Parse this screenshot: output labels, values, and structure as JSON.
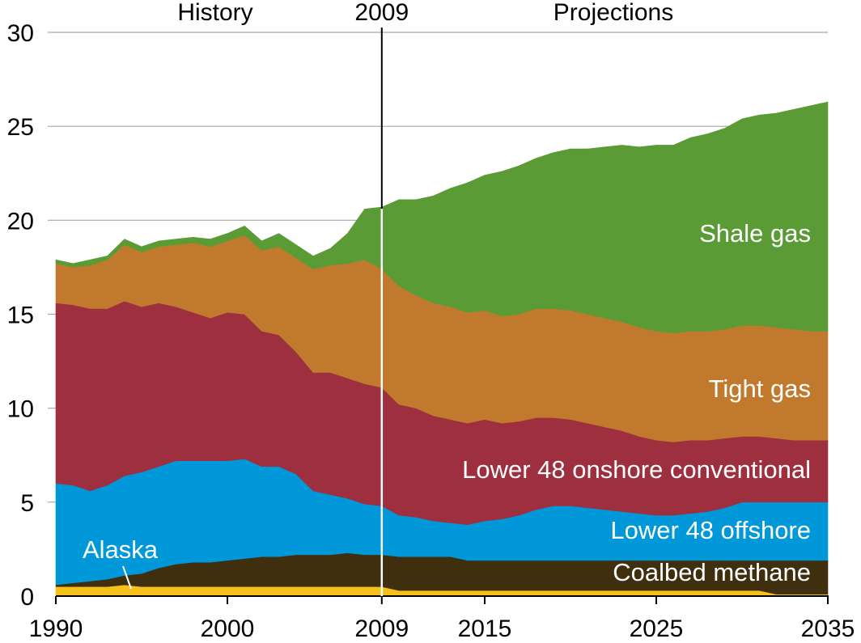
{
  "chart_data": {
    "type": "area",
    "title": "",
    "xlabel": "",
    "ylabel": "",
    "xlim": [
      1990,
      2035
    ],
    "ylim": [
      0,
      30
    ],
    "grid": true,
    "x_ticks": [
      {
        "value": 1990,
        "label": "1990"
      },
      {
        "value": 2000,
        "label": "2000"
      },
      {
        "value": 2009,
        "label": "2009"
      },
      {
        "value": 2015,
        "label": "2015"
      },
      {
        "value": 2025,
        "label": "2025"
      },
      {
        "value": 2035,
        "label": "2035"
      }
    ],
    "y_ticks": [
      {
        "value": 0,
        "label": "0"
      },
      {
        "value": 5,
        "label": "5"
      },
      {
        "value": 10,
        "label": "10"
      },
      {
        "value": 15,
        "label": "15"
      },
      {
        "value": 20,
        "label": "20"
      },
      {
        "value": 25,
        "label": "25"
      },
      {
        "value": 30,
        "label": "30"
      }
    ],
    "divider_year": 2009,
    "annotations": {
      "history": "History",
      "divider": "2009",
      "projections": "Projections"
    },
    "x": [
      1990,
      1991,
      1992,
      1993,
      1994,
      1995,
      1996,
      1997,
      1998,
      1999,
      2000,
      2001,
      2002,
      2003,
      2004,
      2005,
      2006,
      2007,
      2008,
      2009,
      2010,
      2011,
      2012,
      2013,
      2014,
      2015,
      2016,
      2017,
      2018,
      2019,
      2020,
      2021,
      2022,
      2023,
      2024,
      2025,
      2026,
      2027,
      2028,
      2029,
      2030,
      2031,
      2032,
      2033,
      2034,
      2035
    ],
    "series": [
      {
        "name": "Alaska",
        "color": "#f5c01a",
        "label_position": "bottom-left",
        "values": [
          0.5,
          0.5,
          0.5,
          0.5,
          0.6,
          0.5,
          0.5,
          0.5,
          0.5,
          0.5,
          0.5,
          0.5,
          0.5,
          0.5,
          0.5,
          0.5,
          0.5,
          0.5,
          0.5,
          0.5,
          0.3,
          0.3,
          0.3,
          0.3,
          0.3,
          0.3,
          0.3,
          0.3,
          0.3,
          0.3,
          0.3,
          0.3,
          0.3,
          0.3,
          0.3,
          0.3,
          0.3,
          0.3,
          0.3,
          0.3,
          0.3,
          0.3,
          0.1,
          0.1,
          0.1,
          0.1
        ]
      },
      {
        "name": "Coalbed methane",
        "color": "#3f2f0f",
        "label_position": "bottom-right",
        "values": [
          0.1,
          0.2,
          0.3,
          0.4,
          0.5,
          0.7,
          1.0,
          1.2,
          1.3,
          1.3,
          1.4,
          1.5,
          1.6,
          1.6,
          1.7,
          1.7,
          1.7,
          1.8,
          1.7,
          1.7,
          1.8,
          1.8,
          1.8,
          1.8,
          1.6,
          1.6,
          1.6,
          1.6,
          1.6,
          1.6,
          1.6,
          1.6,
          1.6,
          1.6,
          1.6,
          1.6,
          1.6,
          1.6,
          1.6,
          1.6,
          1.6,
          1.6,
          1.8,
          1.8,
          1.8,
          1.8
        ]
      },
      {
        "name": "Lower 48 offshore",
        "color": "#0098d8",
        "label_position": "right",
        "values": [
          5.4,
          5.2,
          4.8,
          5.0,
          5.3,
          5.4,
          5.4,
          5.5,
          5.4,
          5.4,
          5.3,
          5.3,
          4.8,
          4.8,
          4.3,
          3.4,
          3.2,
          2.9,
          2.7,
          2.6,
          2.2,
          2.1,
          1.9,
          1.8,
          1.9,
          2.1,
          2.2,
          2.4,
          2.7,
          2.9,
          2.9,
          2.8,
          2.7,
          2.6,
          2.5,
          2.4,
          2.4,
          2.5,
          2.6,
          2.8,
          3.1,
          3.1,
          3.1,
          3.1,
          3.1,
          3.1
        ]
      },
      {
        "name": "Lower 48 onshore conventional",
        "color": "#9e2f3f",
        "label_position": "right",
        "values": [
          9.6,
          9.6,
          9.7,
          9.4,
          9.3,
          8.8,
          8.7,
          8.2,
          7.9,
          7.6,
          7.9,
          7.7,
          7.2,
          7.0,
          6.5,
          6.3,
          6.5,
          6.4,
          6.4,
          6.3,
          5.9,
          5.8,
          5.6,
          5.5,
          5.4,
          5.4,
          5.1,
          5.0,
          4.9,
          4.7,
          4.6,
          4.5,
          4.4,
          4.3,
          4.1,
          4.0,
          3.9,
          3.9,
          3.8,
          3.7,
          3.5,
          3.5,
          3.4,
          3.3,
          3.3,
          3.3
        ]
      },
      {
        "name": "Tight gas",
        "color": "#c17a2d",
        "label_position": "right",
        "values": [
          2.1,
          2.0,
          2.3,
          2.6,
          3.0,
          2.9,
          3.0,
          3.3,
          3.7,
          3.8,
          3.8,
          4.2,
          4.3,
          4.7,
          5.0,
          5.5,
          5.7,
          6.1,
          6.6,
          6.3,
          6.3,
          6.0,
          6.0,
          6.0,
          5.9,
          5.8,
          5.7,
          5.7,
          5.8,
          5.8,
          5.8,
          5.8,
          5.8,
          5.8,
          5.8,
          5.8,
          5.8,
          5.8,
          5.8,
          5.8,
          5.9,
          5.9,
          5.9,
          5.9,
          5.8,
          5.8
        ]
      },
      {
        "name": "Shale gas",
        "color": "#5b9b36",
        "label_position": "upper-right",
        "values": [
          0.2,
          0.2,
          0.3,
          0.2,
          0.3,
          0.3,
          0.3,
          0.3,
          0.3,
          0.4,
          0.4,
          0.5,
          0.5,
          0.7,
          0.7,
          0.7,
          0.9,
          1.6,
          2.7,
          3.3,
          4.6,
          5.1,
          5.7,
          6.3,
          6.9,
          7.2,
          7.7,
          7.9,
          8.0,
          8.3,
          8.6,
          8.8,
          9.1,
          9.4,
          9.6,
          9.9,
          10.0,
          10.3,
          10.5,
          10.7,
          11.0,
          11.2,
          11.4,
          11.7,
          12.0,
          12.2
        ]
      }
    ]
  }
}
